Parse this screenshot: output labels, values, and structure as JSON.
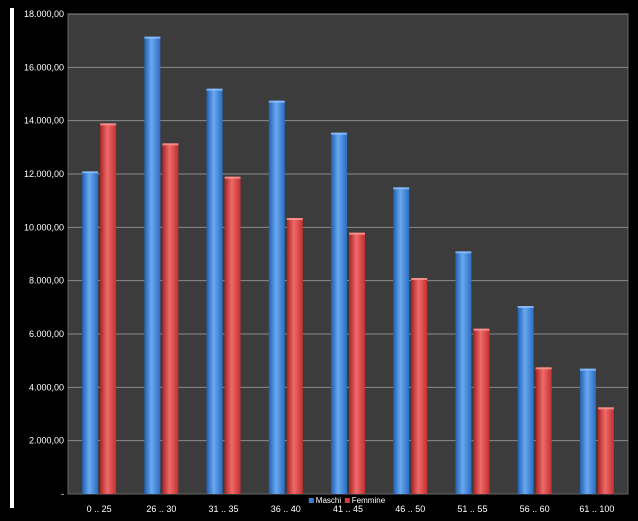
{
  "chart_data": {
    "type": "bar",
    "title": "",
    "xlabel": "",
    "ylabel": "",
    "categories": [
      "0 .. 25",
      "26 .. 30",
      "31 .. 35",
      "36 .. 40",
      "41 .. 45",
      "46 .. 50",
      "51 .. 55",
      "56 .. 60",
      "61 .. 100"
    ],
    "series": [
      {
        "name": "Maschi",
        "color": "#3a7fd4",
        "values": [
          12100,
          17150,
          15200,
          14750,
          13550,
          11500,
          9100,
          7050,
          4700
        ]
      },
      {
        "name": "Femmine",
        "color": "#d63a3a",
        "values": [
          13900,
          13150,
          11900,
          10350,
          9800,
          8100,
          6200,
          4750,
          3250
        ]
      }
    ],
    "ylim": [
      0,
      18000
    ],
    "y_ticks": [
      "-",
      "2.000,00",
      "4.000,00",
      "6.000,00",
      "8.000,00",
      "10.000,00",
      "12.000,00",
      "14.000,00",
      "16.000,00",
      "18.000,00"
    ],
    "grid": true,
    "legend_position": "bottom-center",
    "plot_background": "#3c3c3c"
  }
}
